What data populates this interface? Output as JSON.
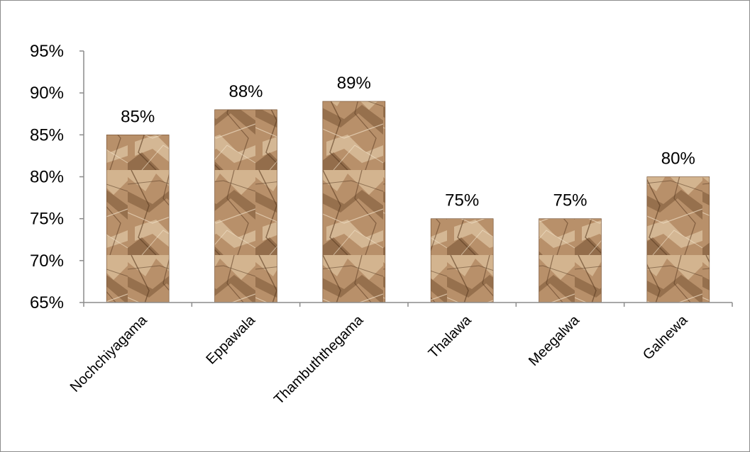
{
  "chart_data": {
    "type": "bar",
    "title": "",
    "xlabel": "",
    "ylabel": "",
    "categories": [
      "Nochchiyagama",
      "Eppawala",
      "Thambuththegama",
      "Thalawa",
      "Meegalwa",
      "Galnewa"
    ],
    "values": [
      85,
      88,
      89,
      75,
      75,
      80
    ],
    "data_labels": [
      "85%",
      "88%",
      "89%",
      "75%",
      "75%",
      "80%"
    ],
    "ylim": [
      65,
      95
    ],
    "yticks": [
      65,
      70,
      75,
      80,
      85,
      90,
      95
    ],
    "ytick_labels": [
      "65%",
      "70%",
      "75%",
      "80%",
      "85%",
      "90%",
      "95%"
    ],
    "grid": false,
    "legend": "none",
    "bar_fill": "crumpled brown paper texture",
    "colors": {
      "bar_base": "#b8906a",
      "bar_light": "#d9bd98",
      "bar_dark": "#6e4a2c",
      "axis": "#8c8c8c"
    }
  }
}
